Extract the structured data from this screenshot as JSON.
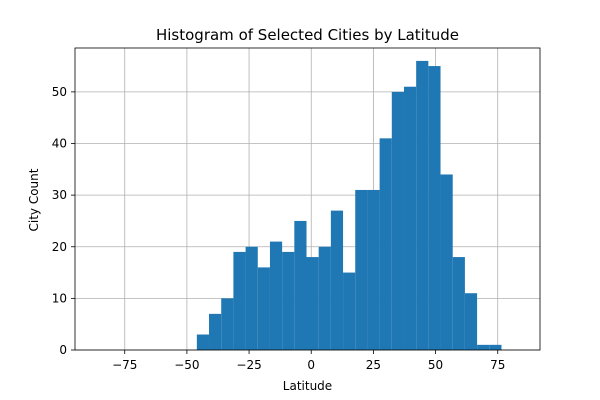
{
  "colors": {
    "bar": "#1f77b4",
    "grid": "#b0b0b0",
    "axis": "#000000",
    "background": "#ffffff"
  },
  "chart_data": {
    "type": "bar",
    "title": "Histogram of Selected Cities by Latitude",
    "xlabel": "Latitude",
    "ylabel": "City Count",
    "xlim": [
      -95,
      92
    ],
    "ylim": [
      0,
      58.5
    ],
    "xticks": [
      -75,
      -50,
      -25,
      0,
      25,
      50,
      75
    ],
    "xtick_labels": [
      "−75",
      "−50",
      "−25",
      "0",
      "25",
      "50",
      "75"
    ],
    "yticks": [
      0,
      10,
      20,
      30,
      40,
      50
    ],
    "ytick_labels": [
      "0",
      "10",
      "20",
      "30",
      "40",
      "50"
    ],
    "grid": true,
    "legend": "none",
    "bin_width": 4.9,
    "bin_starts": [
      -46,
      -41.1,
      -36.2,
      -31.3,
      -26.4,
      -21.5,
      -16.6,
      -11.7,
      -6.8,
      -1.9,
      3.0,
      7.9,
      12.8,
      17.7,
      22.6,
      27.5,
      32.4,
      37.3,
      42.2,
      47.1,
      52.0,
      56.9,
      61.8,
      66.7,
      71.6,
      76.5
    ],
    "values": [
      3,
      7,
      10,
      19,
      20,
      16,
      21,
      19,
      25,
      18,
      20,
      27,
      15,
      31,
      31,
      41,
      50,
      51,
      56,
      55,
      34,
      18,
      11,
      1,
      1,
      0
    ]
  }
}
